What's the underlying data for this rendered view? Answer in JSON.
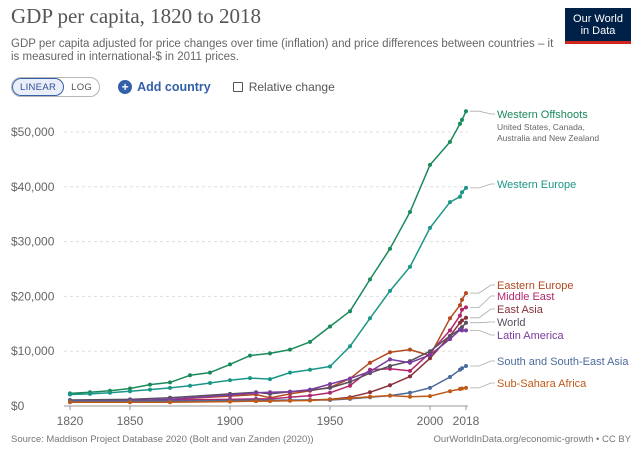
{
  "header": {
    "title": "GDP per capita, 1820 to 2018",
    "subtitle": "GDP per capita adjusted for price changes over time (inflation) and price differences between countries – it is measured in international-$ in 2011 prices.",
    "logo_line1": "Our World",
    "logo_line2": "in Data",
    "logo_bg": "#002147",
    "logo_accent": "#ce261e"
  },
  "controls": {
    "linear_label": "LINEAR",
    "log_label": "LOG",
    "add_country_label": "Add country",
    "relative_change_label": "Relative change"
  },
  "footer": {
    "source": "Source: Maddison Project Database 2020 (Bolt and van Zanden (2020))",
    "credit": "OurWorldInData.org/economic-growth • CC BY"
  },
  "chart_data": {
    "type": "line",
    "x_ticks": [
      "1820",
      "1850",
      "1900",
      "1950",
      "2000",
      "2018"
    ],
    "y_ticks": [
      "$0",
      "$10,000",
      "$20,000",
      "$30,000",
      "$40,000",
      "$50,000"
    ],
    "xlim": [
      1820,
      2018
    ],
    "ylim": [
      0,
      55000
    ],
    "grid": "horizontal-dashed",
    "legend": "right-inline",
    "series": [
      {
        "name": "Western Offshoots",
        "sublabel": "United States, Canada, Australia and New Zealand",
        "color": "#1a8a5a",
        "points": [
          [
            1820,
            2300
          ],
          [
            1830,
            2500
          ],
          [
            1840,
            2800
          ],
          [
            1850,
            3200
          ],
          [
            1860,
            3900
          ],
          [
            1870,
            4300
          ],
          [
            1880,
            5600
          ],
          [
            1890,
            6100
          ],
          [
            1900,
            7600
          ],
          [
            1910,
            9200
          ],
          [
            1920,
            9600
          ],
          [
            1930,
            10300
          ],
          [
            1940,
            11700
          ],
          [
            1950,
            14500
          ],
          [
            1960,
            17300
          ],
          [
            1970,
            23100
          ],
          [
            1980,
            28700
          ],
          [
            1990,
            35400
          ],
          [
            2000,
            44000
          ],
          [
            2010,
            48200
          ],
          [
            2015,
            51500
          ],
          [
            2016,
            52200
          ],
          [
            2018,
            53800
          ]
        ]
      },
      {
        "name": "Western Europe",
        "color": "#1a9686",
        "points": [
          [
            1820,
            2100
          ],
          [
            1830,
            2200
          ],
          [
            1840,
            2400
          ],
          [
            1850,
            2700
          ],
          [
            1860,
            3000
          ],
          [
            1870,
            3300
          ],
          [
            1880,
            3700
          ],
          [
            1890,
            4200
          ],
          [
            1900,
            4700
          ],
          [
            1910,
            5100
          ],
          [
            1920,
            4900
          ],
          [
            1930,
            6100
          ],
          [
            1940,
            6600
          ],
          [
            1950,
            7200
          ],
          [
            1960,
            10900
          ],
          [
            1970,
            16000
          ],
          [
            1980,
            21000
          ],
          [
            1990,
            25400
          ],
          [
            2000,
            32500
          ],
          [
            2010,
            37200
          ],
          [
            2015,
            38200
          ],
          [
            2016,
            39000
          ],
          [
            2018,
            39800
          ]
        ]
      },
      {
        "name": "Eastern Europe",
        "color": "#b24a21",
        "points": [
          [
            1820,
            800
          ],
          [
            1850,
            900
          ],
          [
            1870,
            1200
          ],
          [
            1900,
            1800
          ],
          [
            1913,
            2100
          ],
          [
            1920,
            1500
          ],
          [
            1930,
            2200
          ],
          [
            1940,
            2800
          ],
          [
            1950,
            3400
          ],
          [
            1960,
            5000
          ],
          [
            1970,
            7900
          ],
          [
            1980,
            9800
          ],
          [
            1990,
            10300
          ],
          [
            2000,
            9200
          ],
          [
            2010,
            16000
          ],
          [
            2015,
            18400
          ],
          [
            2016,
            19400
          ],
          [
            2018,
            20600
          ]
        ]
      },
      {
        "name": "Middle East",
        "color": "#b1276e",
        "points": [
          [
            1820,
            900
          ],
          [
            1850,
            1000
          ],
          [
            1870,
            1100
          ],
          [
            1900,
            1200
          ],
          [
            1913,
            1300
          ],
          [
            1920,
            1300
          ],
          [
            1930,
            1600
          ],
          [
            1940,
            1900
          ],
          [
            1950,
            2400
          ],
          [
            1960,
            3700
          ],
          [
            1970,
            6600
          ],
          [
            1980,
            6800
          ],
          [
            1990,
            6400
          ],
          [
            2000,
            9700
          ],
          [
            2010,
            13800
          ],
          [
            2015,
            16500
          ],
          [
            2016,
            17600
          ],
          [
            2018,
            18000
          ]
        ]
      },
      {
        "name": "East Asia",
        "color": "#883039",
        "points": [
          [
            1820,
            1000
          ],
          [
            1850,
            950
          ],
          [
            1870,
            900
          ],
          [
            1900,
            850
          ],
          [
            1913,
            900
          ],
          [
            1920,
            950
          ],
          [
            1930,
            1000
          ],
          [
            1940,
            1100
          ],
          [
            1950,
            1200
          ],
          [
            1960,
            1600
          ],
          [
            1970,
            2500
          ],
          [
            1980,
            3800
          ],
          [
            1990,
            5400
          ],
          [
            2000,
            8700
          ],
          [
            2010,
            12800
          ],
          [
            2015,
            15200
          ],
          [
            2016,
            15600
          ],
          [
            2018,
            16100
          ]
        ]
      },
      {
        "name": "World",
        "color": "#5a4f5f",
        "points": [
          [
            1820,
            1100
          ],
          [
            1850,
            1200
          ],
          [
            1870,
            1500
          ],
          [
            1900,
            2200
          ],
          [
            1913,
            2500
          ],
          [
            1920,
            2200
          ],
          [
            1930,
            2600
          ],
          [
            1940,
            2900
          ],
          [
            1950,
            3300
          ],
          [
            1960,
            4400
          ],
          [
            1970,
            6000
          ],
          [
            1980,
            7300
          ],
          [
            1990,
            8200
          ],
          [
            2000,
            10000
          ],
          [
            2010,
            12800
          ],
          [
            2015,
            14000
          ],
          [
            2016,
            14400
          ],
          [
            2018,
            15200
          ]
        ]
      },
      {
        "name": "Latin America",
        "color": "#7a3b9e",
        "points": [
          [
            1820,
            900
          ],
          [
            1850,
            1000
          ],
          [
            1870,
            1200
          ],
          [
            1900,
            2000
          ],
          [
            1913,
            2400
          ],
          [
            1920,
            2500
          ],
          [
            1930,
            2600
          ],
          [
            1940,
            3000
          ],
          [
            1950,
            4000
          ],
          [
            1960,
            5000
          ],
          [
            1970,
            6300
          ],
          [
            1980,
            8500
          ],
          [
            1990,
            7900
          ],
          [
            2000,
            9300
          ],
          [
            2010,
            12200
          ],
          [
            2015,
            13900
          ],
          [
            2016,
            13800
          ],
          [
            2018,
            13800
          ]
        ]
      },
      {
        "name": "South and South-East Asia",
        "color": "#4c6a9c",
        "points": [
          [
            1820,
            900
          ],
          [
            1850,
            900
          ],
          [
            1870,
            900
          ],
          [
            1900,
            1000
          ],
          [
            1913,
            1100
          ],
          [
            1920,
            1050
          ],
          [
            1930,
            1100
          ],
          [
            1940,
            1100
          ],
          [
            1950,
            1100
          ],
          [
            1960,
            1300
          ],
          [
            1970,
            1600
          ],
          [
            1980,
            1900
          ],
          [
            1990,
            2400
          ],
          [
            2000,
            3300
          ],
          [
            2010,
            5300
          ],
          [
            2015,
            6600
          ],
          [
            2016,
            6900
          ],
          [
            2018,
            7300
          ]
        ]
      },
      {
        "name": "Sub-Sahara Africa",
        "color": "#c05917",
        "points": [
          [
            1820,
            700
          ],
          [
            1850,
            700
          ],
          [
            1870,
            700
          ],
          [
            1900,
            800
          ],
          [
            1913,
            900
          ],
          [
            1920,
            900
          ],
          [
            1930,
            950
          ],
          [
            1940,
            1000
          ],
          [
            1950,
            1200
          ],
          [
            1960,
            1400
          ],
          [
            1970,
            1700
          ],
          [
            1980,
            1900
          ],
          [
            1990,
            1700
          ],
          [
            2000,
            1800
          ],
          [
            2010,
            2700
          ],
          [
            2015,
            3100
          ],
          [
            2016,
            3200
          ],
          [
            2018,
            3300
          ]
        ]
      }
    ]
  }
}
